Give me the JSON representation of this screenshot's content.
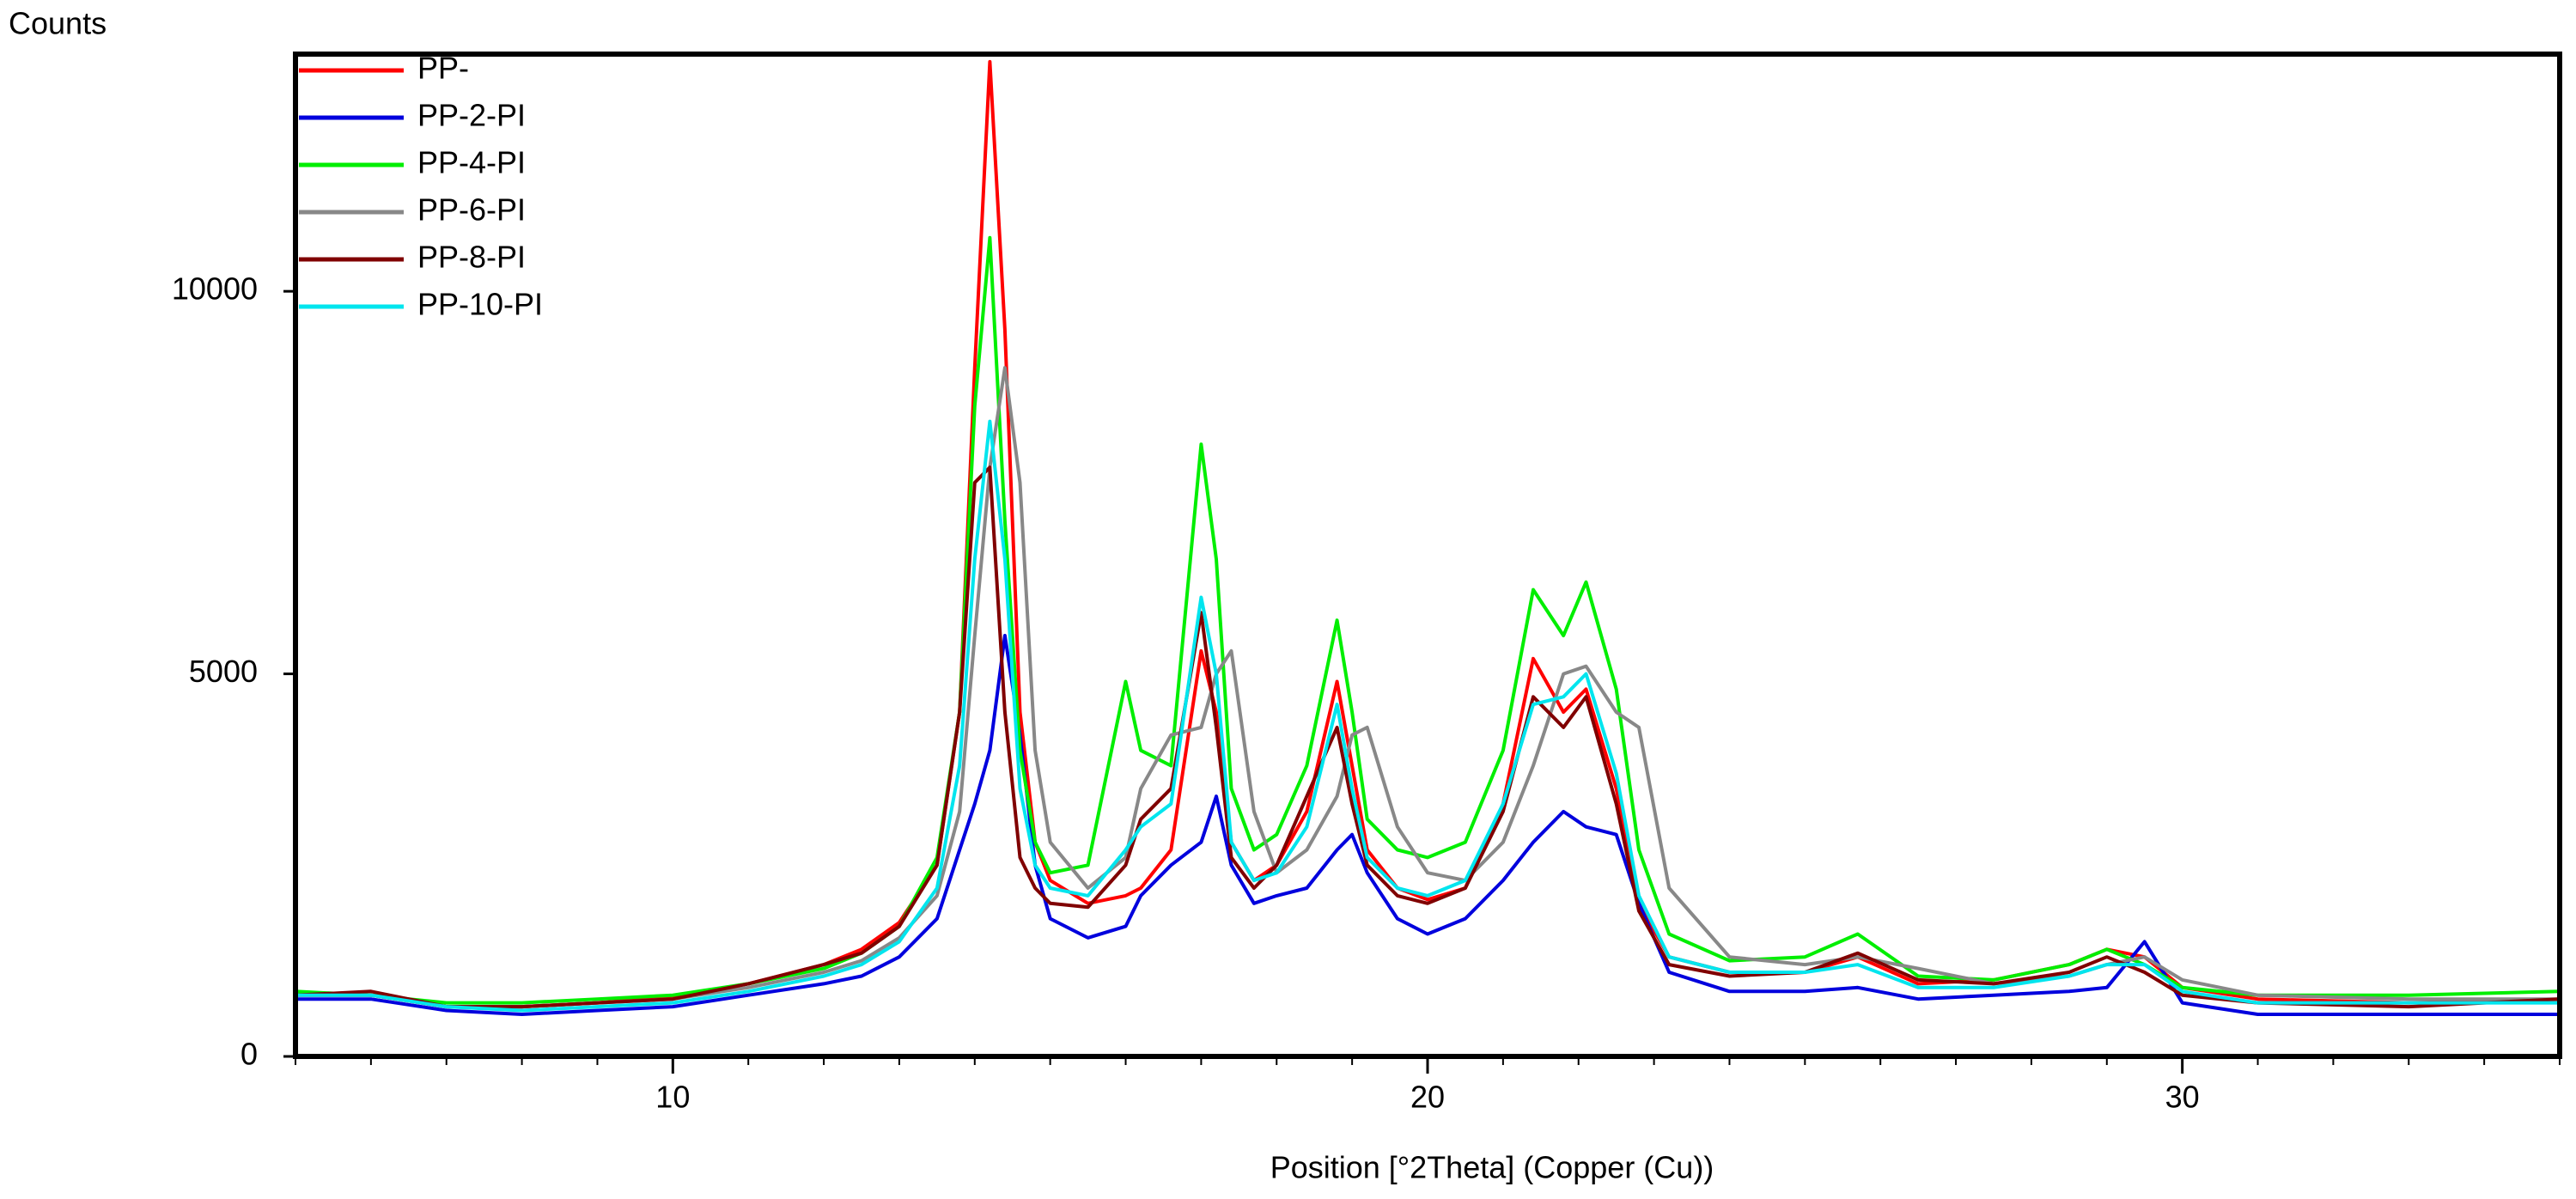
{
  "chart_data": {
    "type": "line",
    "y_label": "Counts",
    "x_label": "Position [°2Theta] (Copper (Cu))",
    "xlim": [
      5,
      35
    ],
    "xticks": [
      10,
      20,
      30
    ],
    "xminorticks": [
      5,
      6,
      7,
      8,
      9,
      10,
      11,
      12,
      13,
      14,
      15,
      16,
      17,
      18,
      19,
      20,
      21,
      22,
      23,
      24,
      25,
      26,
      27,
      28,
      29,
      30,
      31,
      32,
      33,
      34,
      35
    ],
    "ylim": [
      0,
      13100
    ],
    "yticks": [
      0,
      5000,
      10000
    ],
    "legend": "top-left",
    "x": [
      5,
      6,
      7,
      8,
      9,
      10,
      11,
      12,
      12.5,
      13,
      13.5,
      13.8,
      14,
      14.2,
      14.4,
      14.6,
      14.8,
      15,
      15.5,
      16,
      16.2,
      16.6,
      17,
      17.2,
      17.4,
      17.7,
      18,
      18.4,
      18.8,
      19,
      19.2,
      19.6,
      20,
      20.5,
      21,
      21.4,
      21.8,
      22.1,
      22.5,
      22.8,
      23.2,
      24,
      25,
      25.7,
      26.5,
      27.5,
      28.5,
      29,
      29.5,
      30,
      31,
      33,
      35
    ],
    "series": [
      {
        "name": "PP-",
        "color": "#ff0000",
        "values": [
          800,
          800,
          650,
          650,
          700,
          780,
          950,
          1200,
          1400,
          1750,
          2500,
          4500,
          9000,
          13000,
          9500,
          4500,
          2800,
          2300,
          2000,
          2100,
          2200,
          2700,
          5300,
          4500,
          2800,
          2300,
          2500,
          3200,
          4900,
          3800,
          2700,
          2200,
          2050,
          2200,
          3300,
          5200,
          4500,
          4800,
          3500,
          2000,
          1300,
          1100,
          1100,
          1300,
          950,
          1000,
          1200,
          1400,
          1300,
          900,
          750,
          700,
          750
        ]
      },
      {
        "name": "PP-2-PI",
        "color": "#0000dd",
        "values": [
          750,
          750,
          600,
          550,
          600,
          650,
          800,
          950,
          1050,
          1300,
          1800,
          2700,
          3300,
          4000,
          5500,
          4200,
          2500,
          1800,
          1550,
          1700,
          2100,
          2500,
          2800,
          3400,
          2500,
          2000,
          2100,
          2200,
          2700,
          2900,
          2400,
          1800,
          1600,
          1800,
          2300,
          2800,
          3200,
          3000,
          2900,
          2000,
          1100,
          850,
          850,
          900,
          750,
          800,
          850,
          900,
          1500,
          700,
          550,
          550,
          550
        ]
      },
      {
        "name": "PP-4-PI",
        "color": "#00ee00",
        "values": [
          850,
          800,
          700,
          700,
          750,
          800,
          950,
          1150,
          1350,
          1700,
          2600,
          4500,
          8500,
          10700,
          7000,
          4000,
          2800,
          2400,
          2500,
          4900,
          4000,
          3800,
          8000,
          6500,
          3500,
          2700,
          2900,
          3800,
          5700,
          4500,
          3100,
          2700,
          2600,
          2800,
          4000,
          6100,
          5500,
          6200,
          4800,
          2700,
          1600,
          1250,
          1300,
          1600,
          1050,
          1000,
          1200,
          1400,
          1200,
          900,
          800,
          800,
          850
        ]
      },
      {
        "name": "PP-6-PI",
        "color": "#888888",
        "values": [
          800,
          800,
          650,
          650,
          700,
          750,
          900,
          1100,
          1250,
          1550,
          2100,
          3200,
          5500,
          7700,
          9000,
          7500,
          4000,
          2800,
          2200,
          2600,
          3500,
          4200,
          4300,
          5000,
          5300,
          3200,
          2400,
          2700,
          3400,
          4200,
          4300,
          3000,
          2400,
          2300,
          2800,
          3800,
          5000,
          5100,
          4500,
          4300,
          2200,
          1300,
          1200,
          1300,
          1150,
          950,
          1050,
          1200,
          1300,
          1000,
          800,
          750,
          750
        ]
      },
      {
        "name": "PP-8-PI",
        "color": "#800000",
        "values": [
          800,
          850,
          650,
          650,
          700,
          750,
          950,
          1200,
          1350,
          1700,
          2500,
          4500,
          7500,
          7700,
          4500,
          2600,
          2200,
          2000,
          1950,
          2500,
          3100,
          3500,
          5800,
          4300,
          2600,
          2200,
          2500,
          3400,
          4300,
          3300,
          2500,
          2100,
          2000,
          2200,
          3200,
          4700,
          4300,
          4700,
          3300,
          1900,
          1200,
          1050,
          1100,
          1350,
          1000,
          950,
          1100,
          1300,
          1100,
          800,
          700,
          650,
          750
        ]
      },
      {
        "name": "PP-10-PI",
        "color": "#00e5ee",
        "values": [
          800,
          800,
          650,
          600,
          650,
          700,
          850,
          1050,
          1200,
          1500,
          2200,
          3800,
          6500,
          8300,
          6500,
          3500,
          2500,
          2200,
          2100,
          2700,
          3000,
          3300,
          6000,
          5000,
          2800,
          2300,
          2400,
          3000,
          4600,
          3500,
          2600,
          2200,
          2100,
          2300,
          3300,
          4600,
          4700,
          5000,
          3700,
          2100,
          1300,
          1100,
          1100,
          1200,
          900,
          900,
          1050,
          1200,
          1200,
          850,
          700,
          700,
          700
        ]
      }
    ]
  }
}
